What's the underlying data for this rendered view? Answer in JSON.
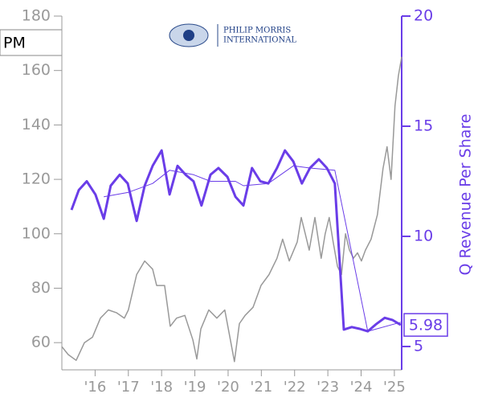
{
  "chart_data": {
    "type": "line",
    "ticker": "PM",
    "logo_text": [
      "PHILIP MORRIS",
      "INTERNATIONAL"
    ],
    "y2label": "Q Revenue Per Share",
    "xlim": [
      2015.0,
      2025.22
    ],
    "xticks": [
      {
        "value": 2016,
        "label": "'16"
      },
      {
        "value": 2017,
        "label": "'17"
      },
      {
        "value": 2018,
        "label": "'18"
      },
      {
        "value": 2019,
        "label": "'19"
      },
      {
        "value": 2020,
        "label": "'20"
      },
      {
        "value": 2021,
        "label": "'21"
      },
      {
        "value": 2022,
        "label": "'22"
      },
      {
        "value": 2023,
        "label": "'23"
      },
      {
        "value": 2024,
        "label": "'24"
      },
      {
        "value": 2025,
        "label": "'25"
      }
    ],
    "ylim": [
      50,
      180
    ],
    "yticks": [
      60,
      80,
      100,
      120,
      140,
      160,
      180
    ],
    "y2lim": [
      3.94,
      20
    ],
    "y2ticks": [
      5,
      10,
      15,
      20
    ],
    "axis_color": "#999999",
    "y2_color": "#6a3de8",
    "series": [
      {
        "color": "#999999",
        "width": 1.5,
        "axis": "y",
        "x": [
          2015.0,
          2015.19,
          2015.43,
          2015.68,
          2015.92,
          2016.16,
          2016.4,
          2016.64,
          2016.88,
          2017.0,
          2017.25,
          2017.49,
          2017.73,
          2017.85,
          2018.09,
          2018.26,
          2018.45,
          2018.7,
          2018.94,
          2019.06,
          2019.18,
          2019.42,
          2019.66,
          2019.9,
          2020.07,
          2020.19,
          2020.34,
          2020.51,
          2020.75,
          2020.99,
          2021.23,
          2021.47,
          2021.64,
          2021.84,
          2022.08,
          2022.2,
          2022.32,
          2022.44,
          2022.61,
          2022.8,
          2022.92,
          2023.04,
          2023.16,
          2023.29,
          2023.41,
          2023.53,
          2023.65,
          2023.77,
          2023.89,
          2024.01,
          2024.13,
          2024.3,
          2024.49,
          2024.66,
          2024.78,
          2024.9,
          2025.02,
          2025.12,
          2025.22
        ],
        "values": [
          58.5,
          55.6,
          53.5,
          60,
          62,
          69,
          72,
          71,
          69,
          72,
          85,
          90,
          87,
          81,
          81,
          66,
          69,
          70,
          61,
          54,
          65,
          72,
          69,
          72,
          61,
          53,
          67,
          70,
          73,
          81,
          85,
          91,
          98,
          90,
          97,
          106,
          100,
          94,
          106,
          91,
          100,
          106,
          97,
          88,
          85,
          100,
          94,
          91,
          93,
          90,
          94,
          98,
          107,
          124,
          132,
          120,
          147,
          158,
          165
        ]
      },
      {
        "color": "#6a3de8",
        "width": 3,
        "axis": "y2",
        "x": [
          2015.29,
          2015.51,
          2015.75,
          2016.01,
          2016.26,
          2016.47,
          2016.74,
          2016.98,
          2017.25,
          2017.49,
          2017.73,
          2018.0,
          2018.24,
          2018.48,
          2018.72,
          2018.96,
          2019.2,
          2019.47,
          2019.71,
          2019.98,
          2020.22,
          2020.46,
          2020.72,
          2020.97,
          2021.21,
          2021.47,
          2021.71,
          2021.96,
          2022.22,
          2022.46,
          2022.73,
          2022.97,
          2023.21,
          2023.48,
          2023.72,
          2023.96,
          2024.2,
          2024.44,
          2024.71,
          2024.95,
          2025.19
        ],
        "values": [
          11.2,
          12.1,
          12.5,
          11.9,
          10.8,
          12.3,
          12.8,
          12.4,
          10.7,
          12.3,
          13.2,
          13.9,
          11.9,
          13.2,
          12.8,
          12.5,
          11.4,
          12.8,
          13.1,
          12.7,
          11.8,
          11.4,
          13.1,
          12.5,
          12.4,
          13.1,
          13.9,
          13.4,
          12.4,
          13.1,
          13.5,
          13.1,
          12.4,
          5.77,
          5.88,
          5.8,
          5.69,
          6.0,
          6.3,
          6.2,
          5.98
        ]
      },
      {
        "color": "#6a3de8",
        "width": 1,
        "axis": "y2",
        "x": [
          2016.26,
          2017.0,
          2017.73,
          2018.24,
          2018.96,
          2019.47,
          2020.22,
          2020.46,
          2021.21,
          2021.96,
          2022.46,
          2023.21,
          2024.2,
          2025.19
        ],
        "values": [
          11.8,
          12.0,
          12.4,
          13.0,
          12.8,
          12.5,
          12.5,
          12.3,
          12.4,
          13.2,
          13.1,
          13.0,
          5.69,
          6.1
        ]
      }
    ]
  }
}
